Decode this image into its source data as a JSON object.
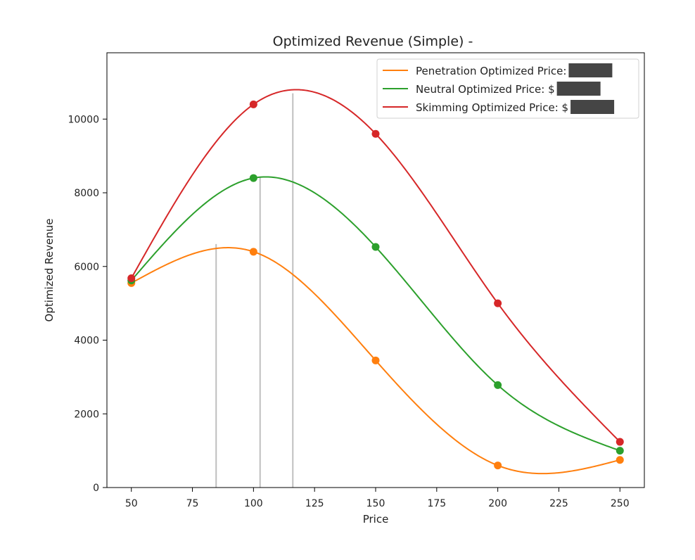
{
  "chart_data": {
    "type": "line",
    "title": "Optimized Revenue (Simple) -",
    "xlabel": "Price",
    "ylabel": "Optimized Revenue",
    "xlim": [
      40,
      260
    ],
    "ylim": [
      0,
      11800
    ],
    "xticks": [
      50,
      75,
      100,
      125,
      150,
      175,
      200,
      225,
      250
    ],
    "yticks": [
      0,
      2000,
      4000,
      6000,
      8000,
      10000
    ],
    "grid": false,
    "legend_position": "top-right",
    "x": [
      50,
      100,
      150,
      200,
      250
    ],
    "series": [
      {
        "name": "Penetration Optimized Price:",
        "color": "#ff7f0e",
        "values": [
          5550,
          6400,
          3450,
          600,
          750
        ],
        "optimal_price": 84.7,
        "optimal_revenue": 6610
      },
      {
        "name": "Neutral Optimized Price: $",
        "color": "#2ca02c",
        "values": [
          5620,
          8400,
          6530,
          2780,
          1000
        ],
        "optimal_price": 102.7,
        "optimal_revenue": 8420
      },
      {
        "name": "Skimming Optimized Price: $",
        "color": "#d62728",
        "values": [
          5680,
          10400,
          9600,
          5000,
          1240
        ],
        "optimal_price": 116.1,
        "optimal_revenue": 10700
      }
    ],
    "marker_line_color": "#bfbfbf",
    "redaction_color": "#454545"
  }
}
